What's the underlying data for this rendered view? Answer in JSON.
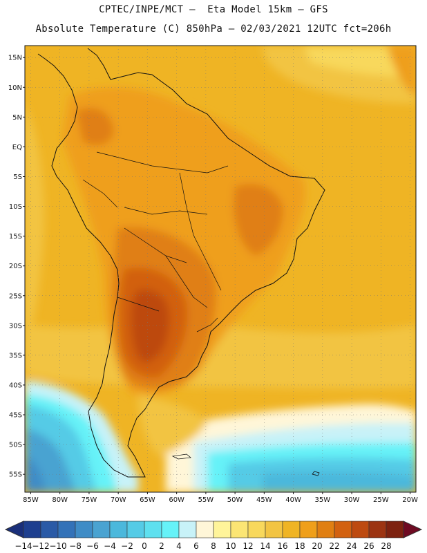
{
  "header": {
    "title_line1": "CPTEC/INPE/MCT –  Eta Model 15km – GFS",
    "title_line2": "Absolute Temperature (C) 850hPa – 02/03/2021 12UTC fct=206h"
  },
  "map": {
    "lat_labels": [
      "15N",
      "10N",
      "5N",
      "EQ",
      "5S",
      "10S",
      "15S",
      "20S",
      "25S",
      "30S",
      "35S",
      "40S",
      "45S",
      "50S",
      "55S"
    ],
    "lat_values": [
      15,
      10,
      5,
      0,
      -5,
      -10,
      -15,
      -20,
      -25,
      -30,
      -35,
      -40,
      -45,
      -50,
      -55
    ],
    "lon_labels": [
      "85W",
      "80W",
      "75W",
      "70W",
      "65W",
      "60W",
      "55W",
      "50W",
      "45W",
      "40W",
      "35W",
      "30W",
      "25W",
      "20W"
    ],
    "lon_values": [
      -85,
      -80,
      -75,
      -70,
      -65,
      -60,
      -55,
      -50,
      -45,
      -40,
      -35,
      -30,
      -25,
      -20
    ],
    "lon_range": [
      -86,
      -19
    ],
    "lat_range": [
      -58,
      17
    ]
  },
  "colorbar": {
    "labels": [
      "-14",
      "-12",
      "-10",
      "-8",
      "-6",
      "-4",
      "-2",
      "0",
      "2",
      "4",
      "6",
      "8",
      "10",
      "12",
      "14",
      "16",
      "18",
      "20",
      "22",
      "24",
      "26",
      "28"
    ],
    "colors": [
      "#1e3f8f",
      "#2a5aa6",
      "#3372b8",
      "#3f8cc6",
      "#4aa3d1",
      "#4bb8dc",
      "#55cbe6",
      "#5ee0ef",
      "#66f2f8",
      "#c8f2f8",
      "#fff6d8",
      "#fff49a",
      "#fbe574",
      "#f8d85c",
      "#f2c443",
      "#efb424",
      "#ef9f1a",
      "#e07f12",
      "#d26110",
      "#bd4a10",
      "#9c3412",
      "#7d2210"
    ],
    "low_cap_color": "#1a2f7a",
    "high_cap_color": "#6e0a22"
  }
}
